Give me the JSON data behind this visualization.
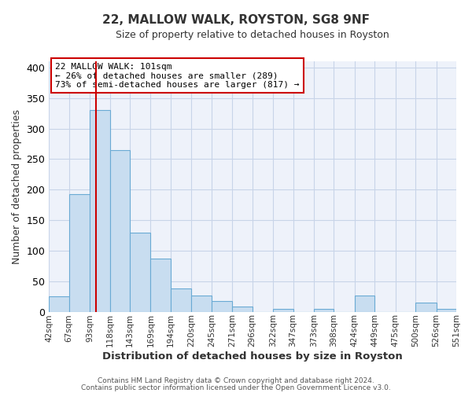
{
  "title": "22, MALLOW WALK, ROYSTON, SG8 9NF",
  "subtitle": "Size of property relative to detached houses in Royston",
  "xlabel": "Distribution of detached houses by size in Royston",
  "ylabel": "Number of detached properties",
  "bar_color": "#c8ddf0",
  "bar_edge_color": "#6aaad4",
  "grid_color": "#c8d4e8",
  "background_color": "#ffffff",
  "plot_bg_color": "#eef2fa",
  "bin_edges": [
    42,
    67,
    93,
    118,
    143,
    169,
    194,
    220,
    245,
    271,
    296,
    322,
    347,
    373,
    398,
    424,
    449,
    475,
    500,
    526,
    551
  ],
  "bar_heights": [
    25,
    193,
    330,
    265,
    130,
    87,
    38,
    26,
    17,
    8,
    0,
    5,
    0,
    4,
    0,
    27,
    0,
    0,
    15,
    5
  ],
  "tick_labels": [
    "42sqm",
    "67sqm",
    "93sqm",
    "118sqm",
    "143sqm",
    "169sqm",
    "194sqm",
    "220sqm",
    "245sqm",
    "271sqm",
    "296sqm",
    "322sqm",
    "347sqm",
    "373sqm",
    "398sqm",
    "424sqm",
    "449sqm",
    "475sqm",
    "500sqm",
    "526sqm",
    "551sqm"
  ],
  "vline_x": 101,
  "vline_color": "#cc0000",
  "annotation_text": "22 MALLOW WALK: 101sqm\n← 26% of detached houses are smaller (289)\n73% of semi-detached houses are larger (817) →",
  "annotation_box_color": "#ffffff",
  "annotation_box_edge": "#cc0000",
  "ylim": [
    0,
    410
  ],
  "yticks": [
    0,
    50,
    100,
    150,
    200,
    250,
    300,
    350,
    400
  ],
  "footer1": "Contains HM Land Registry data © Crown copyright and database right 2024.",
  "footer2": "Contains public sector information licensed under the Open Government Licence v3.0."
}
